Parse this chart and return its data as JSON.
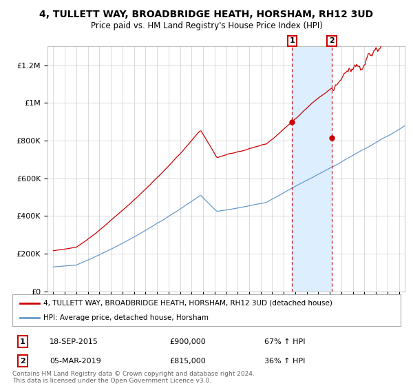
{
  "title": "4, TULLETT WAY, BROADBRIDGE HEATH, HORSHAM, RH12 3UD",
  "subtitle": "Price paid vs. HM Land Registry's House Price Index (HPI)",
  "hpi_label": "4, TULLETT WAY, BROADBRIDGE HEATH, HORSHAM, RH12 3UD (detached house)",
  "avg_label": "HPI: Average price, detached house, Horsham",
  "sale1_date": "18-SEP-2015",
  "sale1_price": "£900,000",
  "sale1_hpi": "67% ↑ HPI",
  "sale2_date": "05-MAR-2019",
  "sale2_price": "£815,000",
  "sale2_hpi": "36% ↑ HPI",
  "footer": "Contains HM Land Registry data © Crown copyright and database right 2024.\nThis data is licensed under the Open Government Licence v3.0.",
  "sale1_x": 2015.72,
  "sale1_y": 900000,
  "sale2_x": 2019.17,
  "sale2_y": 815000,
  "shade_xmin": 2015.72,
  "shade_xmax": 2019.17,
  "ylim": [
    0,
    1300000
  ],
  "xlim": [
    1994.5,
    2025.5
  ],
  "red_color": "#cc0000",
  "blue_color": "#6699cc",
  "shade_color": "#ddeeff",
  "grid_color": "#cccccc",
  "background_color": "#ffffff"
}
